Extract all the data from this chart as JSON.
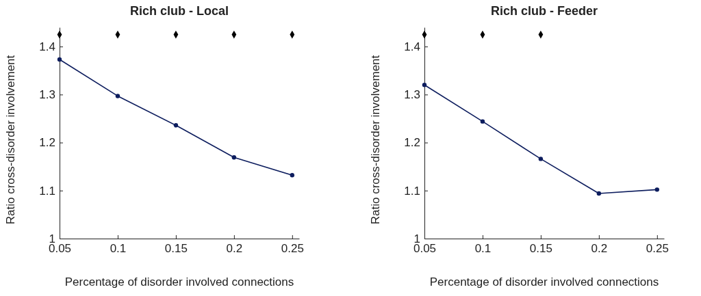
{
  "chart_data": [
    {
      "type": "line",
      "title": "Rich club - Local",
      "xlabel": "Percentage of disorder involved connections",
      "ylabel": "Ratio cross-disorder involvement",
      "xlim": [
        0.05,
        0.256
      ],
      "xticks": [
        0.05,
        0.1,
        0.15,
        0.2,
        0.25
      ],
      "ylim": [
        1,
        1.44
      ],
      "yticks": [
        1,
        1.1,
        1.2,
        1.3,
        1.4
      ],
      "grid": false,
      "series": [
        {
          "color": "#0d1d5e",
          "marker": "circle",
          "line_style": "solid",
          "x": [
            0.05,
            0.1,
            0.15,
            0.2,
            0.25
          ],
          "values": [
            1.373,
            1.297,
            1.236,
            1.169,
            1.132
          ]
        },
        {
          "type": "scatter",
          "color": "#000000",
          "marker": "diamond",
          "x": [
            0.05,
            0.1,
            0.15,
            0.2,
            0.25
          ],
          "values": [
            1.425,
            1.425,
            1.425,
            1.425,
            1.425
          ]
        }
      ]
    },
    {
      "type": "line",
      "title": "Rich club - Feeder",
      "xlabel": "Percentage of disorder involved connections",
      "ylabel": "Ratio cross-disorder involvement",
      "xlim": [
        0.05,
        0.256
      ],
      "xticks": [
        0.05,
        0.1,
        0.15,
        0.2,
        0.25
      ],
      "ylim": [
        1,
        1.44
      ],
      "yticks": [
        1,
        1.1,
        1.2,
        1.3,
        1.4
      ],
      "grid": false,
      "series": [
        {
          "color": "#0d1d5e",
          "marker": "circle",
          "line_style": "solid",
          "x": [
            0.05,
            0.1,
            0.15,
            0.2,
            0.25
          ],
          "values": [
            1.32,
            1.244,
            1.166,
            1.094,
            1.102
          ]
        },
        {
          "type": "scatter",
          "color": "#000000",
          "marker": "diamond",
          "x": [
            0.05,
            0.1,
            0.15
          ],
          "values": [
            1.425,
            1.425,
            1.425
          ]
        }
      ]
    }
  ]
}
